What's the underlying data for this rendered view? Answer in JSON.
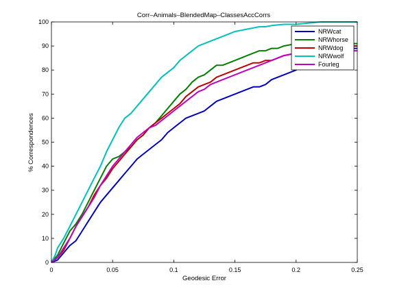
{
  "chart_data": {
    "type": "line",
    "title": "Corr–Animals–BlendedMap–ClassesAccCorrs",
    "xlabel": "Geodesic Error",
    "ylabel": "% Correspondences",
    "xlim": [
      0,
      0.25
    ],
    "ylim": [
      0,
      100
    ],
    "x_ticks": [
      "0",
      "0.05",
      "0.1",
      "0.15",
      "0.2",
      "0.25"
    ],
    "y_ticks": [
      "0",
      "10",
      "20",
      "30",
      "40",
      "50",
      "60",
      "70",
      "80",
      "90",
      "100"
    ],
    "grid": false,
    "legend_position": "top-right",
    "series": [
      {
        "name": "NRWcat",
        "color": "#0000bf",
        "points": [
          [
            0,
            0
          ],
          [
            0.005,
            1
          ],
          [
            0.01,
            4
          ],
          [
            0.015,
            7
          ],
          [
            0.02,
            9
          ],
          [
            0.025,
            13
          ],
          [
            0.03,
            17
          ],
          [
            0.035,
            21
          ],
          [
            0.04,
            25
          ],
          [
            0.045,
            28
          ],
          [
            0.05,
            31
          ],
          [
            0.055,
            34
          ],
          [
            0.06,
            37
          ],
          [
            0.065,
            40
          ],
          [
            0.07,
            43
          ],
          [
            0.075,
            45
          ],
          [
            0.08,
            47
          ],
          [
            0.085,
            49
          ],
          [
            0.09,
            51
          ],
          [
            0.095,
            54
          ],
          [
            0.1,
            56
          ],
          [
            0.105,
            58
          ],
          [
            0.11,
            60
          ],
          [
            0.115,
            61
          ],
          [
            0.12,
            62
          ],
          [
            0.125,
            63
          ],
          [
            0.13,
            65
          ],
          [
            0.135,
            67
          ],
          [
            0.14,
            68
          ],
          [
            0.145,
            69
          ],
          [
            0.15,
            70
          ],
          [
            0.155,
            71
          ],
          [
            0.16,
            72
          ],
          [
            0.165,
            73
          ],
          [
            0.17,
            73
          ],
          [
            0.175,
            74
          ],
          [
            0.18,
            76
          ],
          [
            0.185,
            77
          ],
          [
            0.19,
            78
          ],
          [
            0.195,
            79
          ],
          [
            0.2,
            80
          ],
          [
            0.205,
            82
          ],
          [
            0.21,
            84
          ],
          [
            0.215,
            86
          ],
          [
            0.22,
            87
          ],
          [
            0.225,
            88
          ],
          [
            0.23,
            88
          ],
          [
            0.24,
            89
          ],
          [
            0.25,
            89
          ]
        ]
      },
      {
        "name": "NRWhorse",
        "color": "#007f00",
        "points": [
          [
            0,
            0
          ],
          [
            0.005,
            3
          ],
          [
            0.01,
            8
          ],
          [
            0.015,
            13
          ],
          [
            0.02,
            16
          ],
          [
            0.025,
            20
          ],
          [
            0.03,
            25
          ],
          [
            0.035,
            30
          ],
          [
            0.04,
            35
          ],
          [
            0.045,
            40
          ],
          [
            0.05,
            43
          ],
          [
            0.055,
            44
          ],
          [
            0.06,
            46
          ],
          [
            0.065,
            48
          ],
          [
            0.07,
            51
          ],
          [
            0.075,
            53
          ],
          [
            0.08,
            56
          ],
          [
            0.085,
            58
          ],
          [
            0.09,
            61
          ],
          [
            0.095,
            64
          ],
          [
            0.1,
            67
          ],
          [
            0.105,
            70
          ],
          [
            0.11,
            72
          ],
          [
            0.115,
            75
          ],
          [
            0.12,
            77
          ],
          [
            0.125,
            78
          ],
          [
            0.13,
            80
          ],
          [
            0.135,
            82
          ],
          [
            0.14,
            82
          ],
          [
            0.145,
            83
          ],
          [
            0.15,
            84
          ],
          [
            0.155,
            85
          ],
          [
            0.16,
            86
          ],
          [
            0.165,
            87
          ],
          [
            0.17,
            88
          ],
          [
            0.175,
            88
          ],
          [
            0.18,
            89
          ],
          [
            0.185,
            89
          ],
          [
            0.19,
            90
          ],
          [
            0.2,
            91
          ],
          [
            0.21,
            91
          ],
          [
            0.22,
            91
          ],
          [
            0.23,
            91
          ],
          [
            0.25,
            91
          ]
        ]
      },
      {
        "name": "NRWdog",
        "color": "#bf0000",
        "points": [
          [
            0,
            0
          ],
          [
            0.005,
            2
          ],
          [
            0.01,
            5
          ],
          [
            0.015,
            10
          ],
          [
            0.02,
            15
          ],
          [
            0.025,
            19
          ],
          [
            0.03,
            23
          ],
          [
            0.035,
            28
          ],
          [
            0.04,
            32
          ],
          [
            0.045,
            35
          ],
          [
            0.05,
            39
          ],
          [
            0.055,
            42
          ],
          [
            0.06,
            45
          ],
          [
            0.065,
            48
          ],
          [
            0.07,
            51
          ],
          [
            0.075,
            53
          ],
          [
            0.08,
            56
          ],
          [
            0.085,
            58
          ],
          [
            0.09,
            60
          ],
          [
            0.095,
            62
          ],
          [
            0.1,
            64
          ],
          [
            0.105,
            66
          ],
          [
            0.11,
            69
          ],
          [
            0.115,
            71
          ],
          [
            0.12,
            73
          ],
          [
            0.125,
            74
          ],
          [
            0.13,
            75
          ],
          [
            0.135,
            77
          ],
          [
            0.14,
            78
          ],
          [
            0.145,
            79
          ],
          [
            0.15,
            80
          ],
          [
            0.155,
            81
          ],
          [
            0.16,
            82
          ],
          [
            0.165,
            83
          ],
          [
            0.17,
            83
          ],
          [
            0.175,
            84
          ],
          [
            0.18,
            84
          ],
          [
            0.185,
            85
          ],
          [
            0.19,
            86
          ],
          [
            0.2,
            87
          ],
          [
            0.21,
            88
          ],
          [
            0.22,
            89
          ],
          [
            0.23,
            90
          ],
          [
            0.24,
            90
          ],
          [
            0.25,
            90
          ]
        ]
      },
      {
        "name": "NRWwolf",
        "color": "#00bfbf",
        "points": [
          [
            0,
            0
          ],
          [
            0.003,
            3
          ],
          [
            0.005,
            6
          ],
          [
            0.01,
            10
          ],
          [
            0.015,
            15
          ],
          [
            0.02,
            20
          ],
          [
            0.025,
            25
          ],
          [
            0.03,
            30
          ],
          [
            0.035,
            35
          ],
          [
            0.04,
            40
          ],
          [
            0.045,
            46
          ],
          [
            0.05,
            51
          ],
          [
            0.055,
            56
          ],
          [
            0.06,
            60
          ],
          [
            0.065,
            62
          ],
          [
            0.07,
            65
          ],
          [
            0.075,
            68
          ],
          [
            0.08,
            71
          ],
          [
            0.085,
            74
          ],
          [
            0.09,
            77
          ],
          [
            0.095,
            79
          ],
          [
            0.1,
            81
          ],
          [
            0.105,
            84
          ],
          [
            0.11,
            86
          ],
          [
            0.115,
            88
          ],
          [
            0.12,
            90
          ],
          [
            0.125,
            91
          ],
          [
            0.13,
            92
          ],
          [
            0.135,
            93
          ],
          [
            0.14,
            94
          ],
          [
            0.145,
            95
          ],
          [
            0.15,
            96
          ],
          [
            0.155,
            96.5
          ],
          [
            0.16,
            97
          ],
          [
            0.165,
            97.5
          ],
          [
            0.17,
            98
          ],
          [
            0.175,
            98
          ],
          [
            0.18,
            98.5
          ],
          [
            0.19,
            99
          ],
          [
            0.2,
            99
          ],
          [
            0.21,
            99.5
          ],
          [
            0.22,
            100
          ],
          [
            0.25,
            100
          ]
        ]
      },
      {
        "name": "Fourleg",
        "color": "#bf00bf",
        "points": [
          [
            0,
            0
          ],
          [
            0.005,
            2
          ],
          [
            0.01,
            6
          ],
          [
            0.015,
            10
          ],
          [
            0.02,
            15
          ],
          [
            0.025,
            19
          ],
          [
            0.03,
            23
          ],
          [
            0.035,
            27
          ],
          [
            0.04,
            32
          ],
          [
            0.045,
            36
          ],
          [
            0.05,
            40
          ],
          [
            0.055,
            43
          ],
          [
            0.06,
            46
          ],
          [
            0.065,
            49
          ],
          [
            0.07,
            52
          ],
          [
            0.075,
            54
          ],
          [
            0.08,
            56
          ],
          [
            0.085,
            57
          ],
          [
            0.09,
            59
          ],
          [
            0.095,
            61
          ],
          [
            0.1,
            63
          ],
          [
            0.105,
            65
          ],
          [
            0.11,
            67
          ],
          [
            0.115,
            69
          ],
          [
            0.12,
            71
          ],
          [
            0.125,
            72
          ],
          [
            0.13,
            74
          ],
          [
            0.135,
            75
          ],
          [
            0.14,
            76
          ],
          [
            0.145,
            77
          ],
          [
            0.15,
            78
          ],
          [
            0.155,
            79
          ],
          [
            0.16,
            80
          ],
          [
            0.165,
            81
          ],
          [
            0.17,
            82
          ],
          [
            0.175,
            83
          ],
          [
            0.18,
            84
          ],
          [
            0.185,
            85
          ],
          [
            0.19,
            86
          ],
          [
            0.2,
            87
          ],
          [
            0.21,
            88
          ],
          [
            0.22,
            88
          ],
          [
            0.23,
            88
          ],
          [
            0.25,
            88
          ]
        ]
      }
    ]
  }
}
